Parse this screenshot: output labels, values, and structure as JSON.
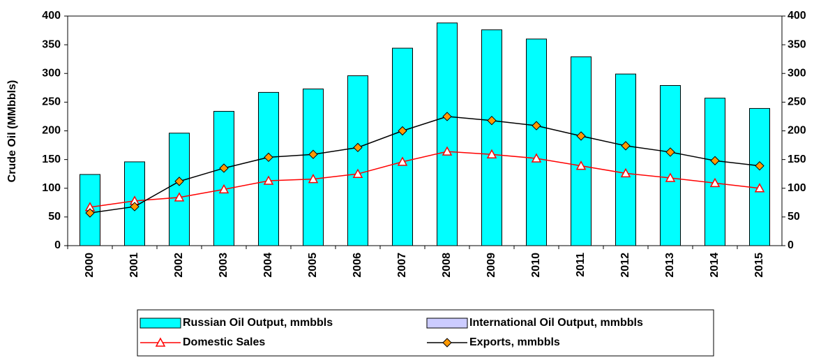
{
  "chart_data": {
    "type": "bar",
    "y_label": "Crude Oil (MMbbls)",
    "categories": [
      "2000",
      "2001",
      "2002",
      "2003",
      "2004",
      "2005",
      "2006",
      "2007",
      "2008",
      "2009",
      "2010",
      "2011",
      "2012",
      "2013",
      "2014",
      "2015"
    ],
    "series": [
      {
        "name": "Russian Oil Output, mmbbls",
        "type": "bar",
        "color": "#00ffff",
        "values": [
          124,
          146,
          196,
          234,
          267,
          273,
          296,
          344,
          388,
          376,
          360,
          329,
          299,
          279,
          257,
          239
        ]
      },
      {
        "name": "International Oil Output, mmbbls",
        "type": "bar",
        "color": "#ccccff",
        "values": [
          null,
          null,
          null,
          null,
          null,
          null,
          null,
          null,
          null,
          null,
          null,
          null,
          null,
          null,
          null,
          null
        ]
      },
      {
        "name": "Domestic Sales",
        "type": "line",
        "color": "#ff0000",
        "marker": "triangle",
        "marker_color": "#ffffff",
        "values": [
          67,
          78,
          84,
          98,
          113,
          116,
          125,
          146,
          164,
          159,
          152,
          139,
          126,
          118,
          109,
          100
        ]
      },
      {
        "name": "Exports, mmbbls",
        "type": "line",
        "color": "#000000",
        "marker": "diamond",
        "marker_color": "#ff9900",
        "values": [
          57,
          68,
          112,
          135,
          154,
          159,
          171,
          200,
          225,
          218,
          209,
          191,
          174,
          163,
          148,
          139
        ]
      }
    ],
    "ylim": [
      0,
      400
    ],
    "yticks": [
      0,
      50,
      100,
      150,
      200,
      250,
      300,
      350,
      400
    ],
    "y2lim": [
      0,
      400
    ],
    "y2ticks": [
      0,
      50,
      100,
      150,
      200,
      250,
      300,
      350,
      400
    ],
    "legend": "bottom"
  }
}
